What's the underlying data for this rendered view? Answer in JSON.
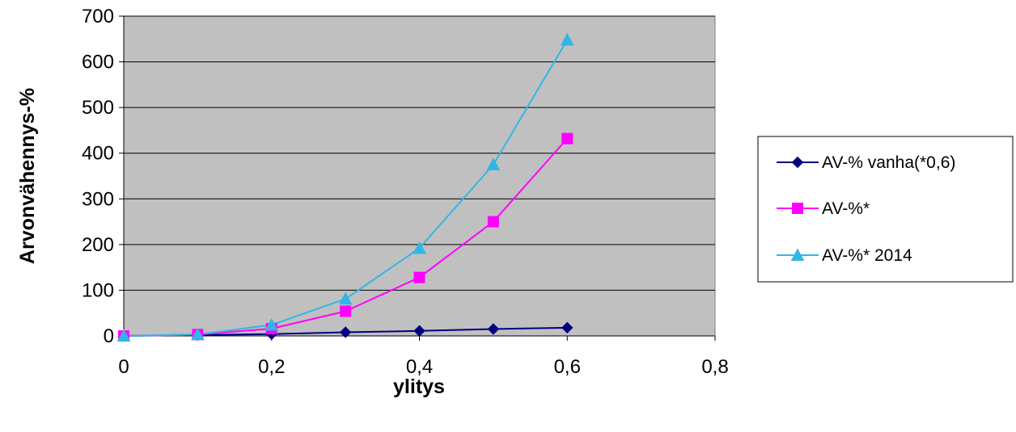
{
  "chart_data": {
    "type": "line",
    "xlabel": "ylitys",
    "ylabel": "Arvonvähennys-%",
    "xlim": [
      0,
      0.8
    ],
    "ylim": [
      0,
      700
    ],
    "x_ticks": [
      0,
      0.2,
      0.4,
      0.6,
      0.8
    ],
    "x_tick_labels": [
      "0",
      "0,2",
      "0,4",
      "0,6",
      "0,8"
    ],
    "y_ticks": [
      0,
      100,
      200,
      300,
      400,
      500,
      600,
      700
    ],
    "y_tick_labels": [
      "0",
      "100",
      "200",
      "300",
      "400",
      "500",
      "600",
      "700"
    ],
    "grid": "horizontal",
    "plot_background": "#c0c0c0",
    "legend_position": "right",
    "series": [
      {
        "name": "AV-% vanha(*0,6)",
        "color": "#000080",
        "marker": "diamond",
        "x": [
          0,
          0.1,
          0.2,
          0.3,
          0.4,
          0.5,
          0.6
        ],
        "y": [
          0,
          2,
          4,
          8,
          11,
          15,
          18
        ]
      },
      {
        "name": "AV-%*",
        "color": "#ff00ff",
        "marker": "square",
        "x": [
          0,
          0.1,
          0.2,
          0.3,
          0.4,
          0.5,
          0.6
        ],
        "y": [
          0,
          3,
          16,
          54,
          128,
          250,
          432
        ]
      },
      {
        "name": "AV-%* 2014",
        "color": "#33b5e5",
        "marker": "triangle",
        "x": [
          0,
          0.1,
          0.2,
          0.3,
          0.4,
          0.5,
          0.6
        ],
        "y": [
          0,
          3,
          24,
          81,
          192,
          375,
          648
        ]
      }
    ]
  }
}
